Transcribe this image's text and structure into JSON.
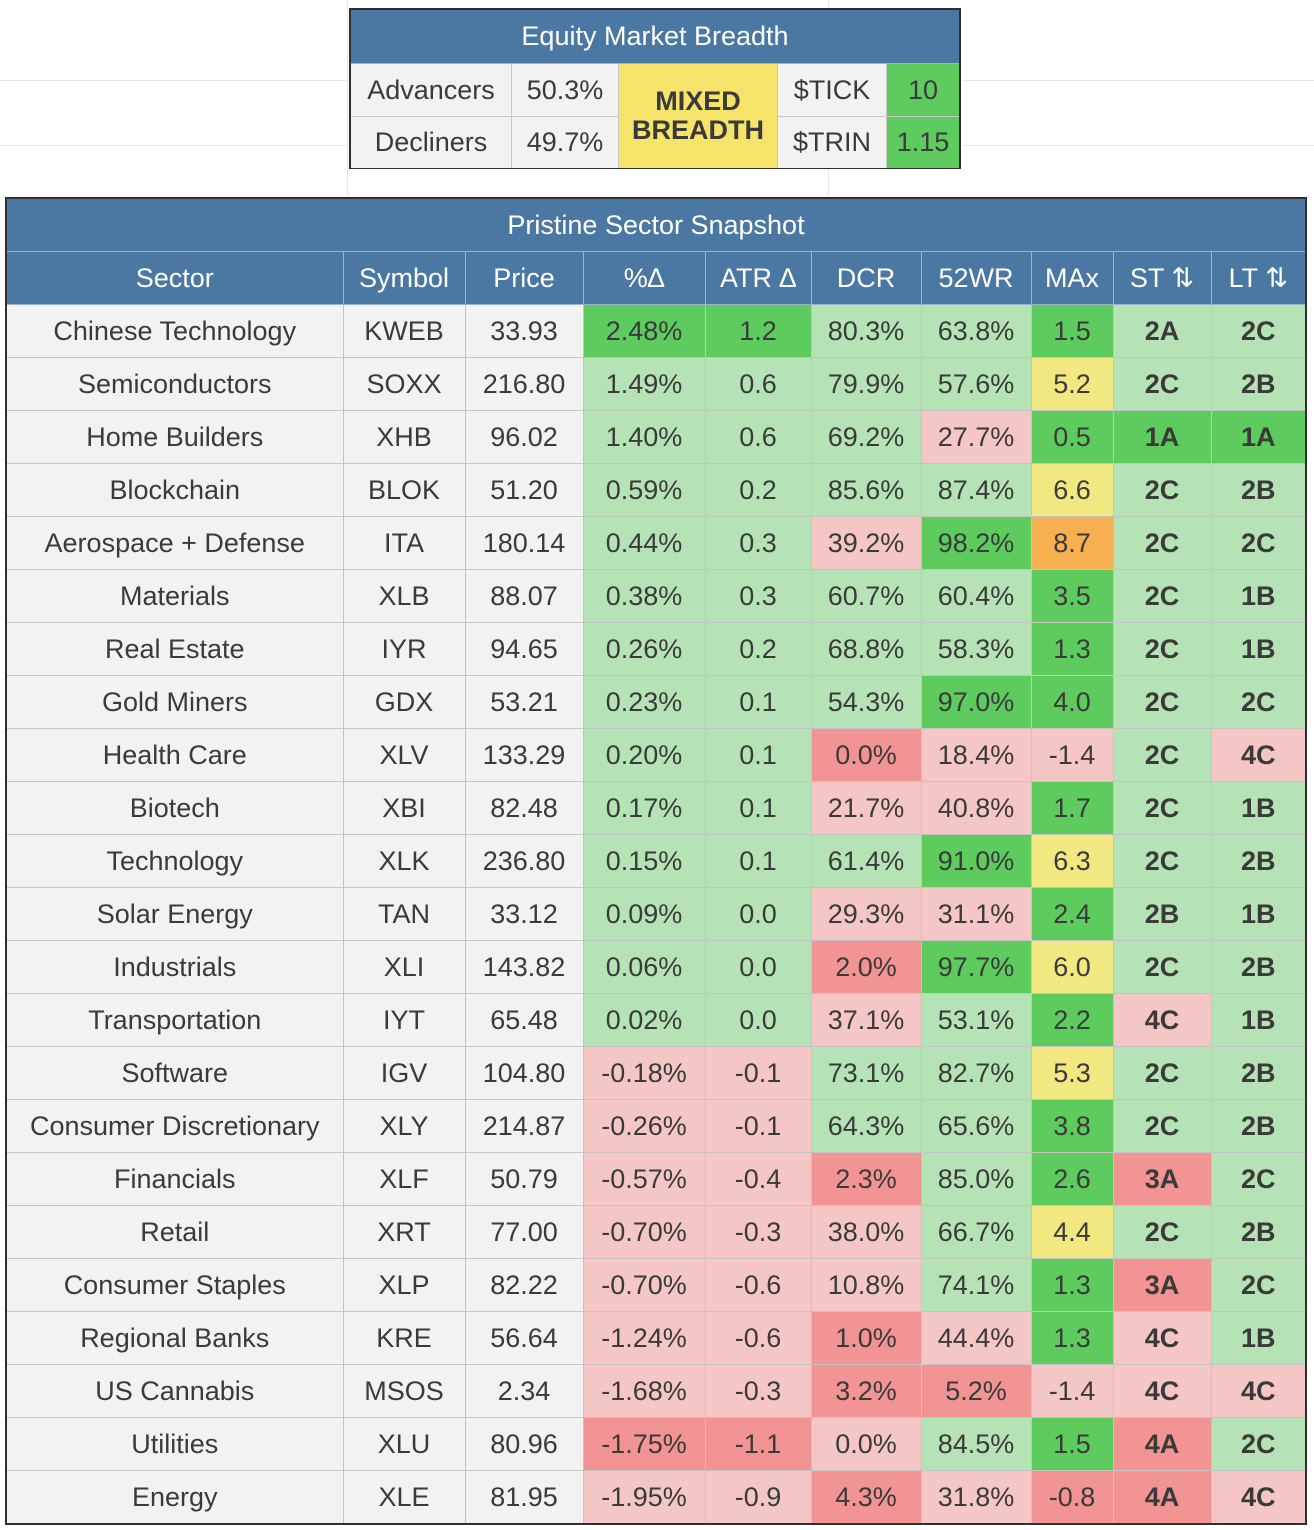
{
  "breadth": {
    "title": "Equity Market Breadth",
    "advancers_label": "Advancers",
    "advancers_value": "50.3%",
    "decliners_label": "Decliners",
    "decliners_value": "49.7%",
    "status_line1": "MIXED",
    "status_line2": "BREADTH",
    "tick_label": "$TICK",
    "tick_value": "10",
    "trin_label": "$TRIN",
    "trin_value": "1.15"
  },
  "snapshot": {
    "title": "Pristine Sector Snapshot",
    "columns": [
      "Sector",
      "Symbol",
      "Price",
      "%∆",
      "ATR ∆",
      "DCR",
      "52WR",
      "MAx",
      "ST ⇅",
      "LT ⇅"
    ],
    "rows": [
      {
        "sector": "Chinese Technology",
        "symbol": "KWEB",
        "price": "33.93",
        "pct": "2.48%",
        "atr": "1.2",
        "dcr": "80.3%",
        "wr": "63.8%",
        "max": "1.5",
        "st": "2A",
        "lt": "2C",
        "c": [
          "G",
          "G",
          "g",
          "g",
          "G",
          "g",
          "g"
        ]
      },
      {
        "sector": "Semiconductors",
        "symbol": "SOXX",
        "price": "216.80",
        "pct": "1.49%",
        "atr": "0.6",
        "dcr": "79.9%",
        "wr": "57.6%",
        "max": "5.2",
        "st": "2C",
        "lt": "2B",
        "c": [
          "g",
          "g",
          "g",
          "g",
          "y",
          "g",
          "g"
        ]
      },
      {
        "sector": "Home Builders",
        "symbol": "XHB",
        "price": "96.02",
        "pct": "1.40%",
        "atr": "0.6",
        "dcr": "69.2%",
        "wr": "27.7%",
        "max": "0.5",
        "st": "1A",
        "lt": "1A",
        "c": [
          "g",
          "g",
          "g",
          "p",
          "G",
          "G",
          "G"
        ]
      },
      {
        "sector": "Blockchain",
        "symbol": "BLOK",
        "price": "51.20",
        "pct": "0.59%",
        "atr": "0.2",
        "dcr": "85.6%",
        "wr": "87.4%",
        "max": "6.6",
        "st": "2C",
        "lt": "2B",
        "c": [
          "g",
          "g",
          "g",
          "g",
          "y",
          "g",
          "g"
        ]
      },
      {
        "sector": "Aerospace + Defense",
        "symbol": "ITA",
        "price": "180.14",
        "pct": "0.44%",
        "atr": "0.3",
        "dcr": "39.2%",
        "wr": "98.2%",
        "max": "8.7",
        "st": "2C",
        "lt": "2C",
        "c": [
          "g",
          "g",
          "p",
          "G",
          "o",
          "g",
          "g"
        ]
      },
      {
        "sector": "Materials",
        "symbol": "XLB",
        "price": "88.07",
        "pct": "0.38%",
        "atr": "0.3",
        "dcr": "60.7%",
        "wr": "60.4%",
        "max": "3.5",
        "st": "2C",
        "lt": "1B",
        "c": [
          "g",
          "g",
          "g",
          "g",
          "G",
          "g",
          "g"
        ]
      },
      {
        "sector": "Real Estate",
        "symbol": "IYR",
        "price": "94.65",
        "pct": "0.26%",
        "atr": "0.2",
        "dcr": "68.8%",
        "wr": "58.3%",
        "max": "1.3",
        "st": "2C",
        "lt": "1B",
        "c": [
          "g",
          "g",
          "g",
          "g",
          "G",
          "g",
          "g"
        ]
      },
      {
        "sector": "Gold Miners",
        "symbol": "GDX",
        "price": "53.21",
        "pct": "0.23%",
        "atr": "0.1",
        "dcr": "54.3%",
        "wr": "97.0%",
        "max": "4.0",
        "st": "2C",
        "lt": "2C",
        "c": [
          "g",
          "g",
          "g",
          "G",
          "G",
          "g",
          "g"
        ]
      },
      {
        "sector": "Health Care",
        "symbol": "XLV",
        "price": "133.29",
        "pct": "0.20%",
        "atr": "0.1",
        "dcr": "0.0%",
        "wr": "18.4%",
        "max": "-1.4",
        "st": "2C",
        "lt": "4C",
        "c": [
          "g",
          "g",
          "r",
          "p",
          "p",
          "g",
          "p"
        ]
      },
      {
        "sector": "Biotech",
        "symbol": "XBI",
        "price": "82.48",
        "pct": "0.17%",
        "atr": "0.1",
        "dcr": "21.7%",
        "wr": "40.8%",
        "max": "1.7",
        "st": "2C",
        "lt": "1B",
        "c": [
          "g",
          "g",
          "p",
          "p",
          "G",
          "g",
          "g"
        ]
      },
      {
        "sector": "Technology",
        "symbol": "XLK",
        "price": "236.80",
        "pct": "0.15%",
        "atr": "0.1",
        "dcr": "61.4%",
        "wr": "91.0%",
        "max": "6.3",
        "st": "2C",
        "lt": "2B",
        "c": [
          "g",
          "g",
          "g",
          "G",
          "y",
          "g",
          "g"
        ]
      },
      {
        "sector": "Solar Energy",
        "symbol": "TAN",
        "price": "33.12",
        "pct": "0.09%",
        "atr": "0.0",
        "dcr": "29.3%",
        "wr": "31.1%",
        "max": "2.4",
        "st": "2B",
        "lt": "1B",
        "c": [
          "g",
          "g",
          "p",
          "p",
          "G",
          "g",
          "g"
        ]
      },
      {
        "sector": "Industrials",
        "symbol": "XLI",
        "price": "143.82",
        "pct": "0.06%",
        "atr": "0.0",
        "dcr": "2.0%",
        "wr": "97.7%",
        "max": "6.0",
        "st": "2C",
        "lt": "2B",
        "c": [
          "g",
          "g",
          "r",
          "G",
          "y",
          "g",
          "g"
        ]
      },
      {
        "sector": "Transportation",
        "symbol": "IYT",
        "price": "65.48",
        "pct": "0.02%",
        "atr": "0.0",
        "dcr": "37.1%",
        "wr": "53.1%",
        "max": "2.2",
        "st": "4C",
        "lt": "1B",
        "c": [
          "g",
          "g",
          "p",
          "g",
          "G",
          "p",
          "g"
        ]
      },
      {
        "sector": "Software",
        "symbol": "IGV",
        "price": "104.80",
        "pct": "-0.18%",
        "atr": "-0.1",
        "dcr": "73.1%",
        "wr": "82.7%",
        "max": "5.3",
        "st": "2C",
        "lt": "2B",
        "c": [
          "p",
          "p",
          "g",
          "g",
          "y",
          "g",
          "g"
        ]
      },
      {
        "sector": "Consumer Discretionary",
        "symbol": "XLY",
        "price": "214.87",
        "pct": "-0.26%",
        "atr": "-0.1",
        "dcr": "64.3%",
        "wr": "65.6%",
        "max": "3.8",
        "st": "2C",
        "lt": "2B",
        "c": [
          "p",
          "p",
          "g",
          "g",
          "G",
          "g",
          "g"
        ]
      },
      {
        "sector": "Financials",
        "symbol": "XLF",
        "price": "50.79",
        "pct": "-0.57%",
        "atr": "-0.4",
        "dcr": "2.3%",
        "wr": "85.0%",
        "max": "2.6",
        "st": "3A",
        "lt": "2C",
        "c": [
          "p",
          "p",
          "r",
          "g",
          "G",
          "r",
          "g"
        ]
      },
      {
        "sector": "Retail",
        "symbol": "XRT",
        "price": "77.00",
        "pct": "-0.70%",
        "atr": "-0.3",
        "dcr": "38.0%",
        "wr": "66.7%",
        "max": "4.4",
        "st": "2C",
        "lt": "2B",
        "c": [
          "p",
          "p",
          "p",
          "g",
          "y",
          "g",
          "g"
        ]
      },
      {
        "sector": "Consumer Staples",
        "symbol": "XLP",
        "price": "82.22",
        "pct": "-0.70%",
        "atr": "-0.6",
        "dcr": "10.8%",
        "wr": "74.1%",
        "max": "1.3",
        "st": "3A",
        "lt": "2C",
        "c": [
          "p",
          "p",
          "p",
          "g",
          "G",
          "r",
          "g"
        ]
      },
      {
        "sector": "Regional Banks",
        "symbol": "KRE",
        "price": "56.64",
        "pct": "-1.24%",
        "atr": "-0.6",
        "dcr": "1.0%",
        "wr": "44.4%",
        "max": "1.3",
        "st": "4C",
        "lt": "1B",
        "c": [
          "p",
          "p",
          "r",
          "p",
          "G",
          "p",
          "g"
        ]
      },
      {
        "sector": "US Cannabis",
        "symbol": "MSOS",
        "price": "2.34",
        "pct": "-1.68%",
        "atr": "-0.3",
        "dcr": "3.2%",
        "wr": "5.2%",
        "max": "-1.4",
        "st": "4C",
        "lt": "4C",
        "c": [
          "p",
          "p",
          "r",
          "r",
          "p",
          "p",
          "p"
        ]
      },
      {
        "sector": "Utilities",
        "symbol": "XLU",
        "price": "80.96",
        "pct": "-1.75%",
        "atr": "-1.1",
        "dcr": "0.0%",
        "wr": "84.5%",
        "max": "1.5",
        "st": "4A",
        "lt": "2C",
        "c": [
          "r",
          "r",
          "p",
          "g",
          "G",
          "r",
          "g"
        ]
      },
      {
        "sector": "Energy",
        "symbol": "XLE",
        "price": "81.95",
        "pct": "-1.95%",
        "atr": "-0.9",
        "dcr": "4.3%",
        "wr": "31.8%",
        "max": "-0.8",
        "st": "4A",
        "lt": "4C",
        "c": [
          "p",
          "p",
          "r",
          "p",
          "r",
          "r",
          "p"
        ]
      }
    ]
  }
}
